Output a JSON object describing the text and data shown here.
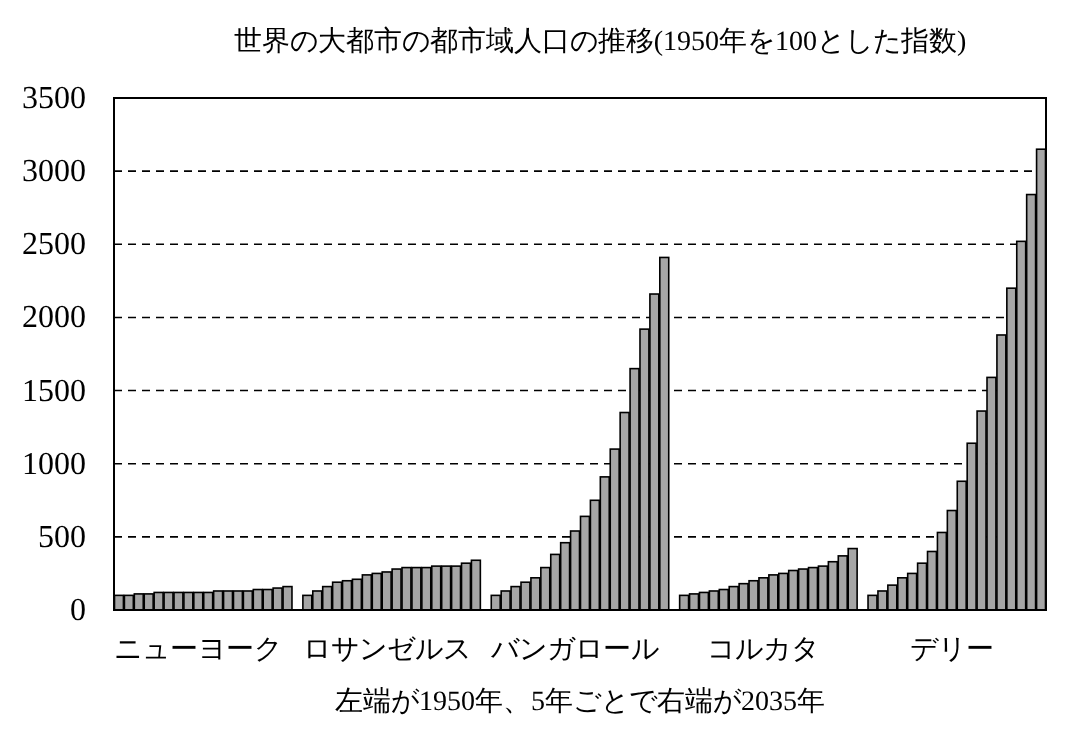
{
  "chart_data": {
    "type": "bar",
    "title": "世界の大都市の都市域人口の推移(1950年を100とした指数)",
    "xlabel": "左端が1950年、5年ごとで右端が2035年",
    "categories": [
      null,
      null,
      null,
      null,
      null,
      null,
      null,
      null,
      "ニューヨーク",
      null,
      null,
      null,
      null,
      null,
      null,
      null,
      null,
      null,
      null,
      null,
      null,
      null,
      null,
      null,
      null,
      null,
      null,
      "ロサンゼルス",
      null,
      null,
      null,
      null,
      null,
      null,
      null,
      null,
      null,
      null,
      null,
      null,
      null,
      null,
      null,
      null,
      null,
      null,
      "バンガロール",
      null,
      null,
      null,
      null,
      null,
      null,
      null,
      null,
      null,
      null,
      null,
      null,
      null,
      null,
      null,
      null,
      null,
      null,
      "コルカタ",
      null,
      null,
      null,
      null,
      null,
      null,
      null,
      null,
      null,
      null,
      null,
      null,
      null,
      null,
      null,
      null,
      null,
      null,
      "デリー",
      null,
      null,
      null,
      null,
      null,
      null,
      null,
      null,
      null
    ],
    "values": [
      100,
      100,
      110,
      110,
      120,
      120,
      120,
      120,
      120,
      120,
      130,
      130,
      130,
      130,
      140,
      140,
      150,
      160,
      null,
      100,
      130,
      160,
      190,
      200,
      210,
      240,
      250,
      260,
      280,
      290,
      290,
      290,
      300,
      300,
      300,
      320,
      340,
      null,
      100,
      130,
      160,
      190,
      220,
      290,
      380,
      460,
      540,
      640,
      750,
      910,
      1100,
      1350,
      1650,
      1920,
      2160,
      2410,
      null,
      100,
      110,
      120,
      130,
      140,
      160,
      180,
      200,
      220,
      240,
      250,
      270,
      280,
      290,
      300,
      330,
      370,
      420,
      null,
      100,
      130,
      170,
      220,
      250,
      320,
      400,
      530,
      680,
      880,
      1140,
      1360,
      1590,
      1880,
      2200,
      2520,
      2840,
      3150
    ],
    "color": "#a6a6a6",
    "ylim": [
      0,
      3500
    ],
    "yticks": [
      0,
      500,
      1000,
      1500,
      2000,
      2500,
      3000,
      3500
    ],
    "grid": "y"
  }
}
